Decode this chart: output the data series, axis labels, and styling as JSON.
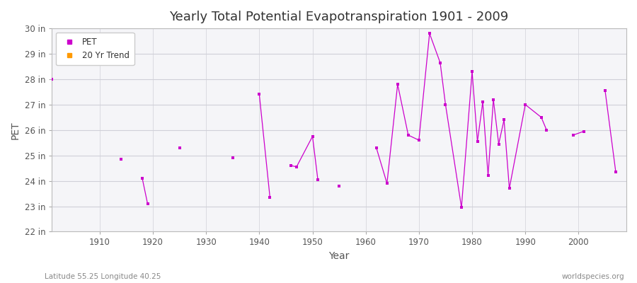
{
  "title": "Yearly Total Potential Evapotranspiration 1901 - 2009",
  "xlabel": "Year",
  "ylabel": "PET",
  "plot_bg_color": "#f5f5f8",
  "fig_bg_color": "#ffffff",
  "pet_color": "#cc00cc",
  "trend_color": "#ff9900",
  "ylim_bottom": 22,
  "ylim_top": 30,
  "ytick_labels": [
    "22 in",
    "23 in",
    "24 in",
    "25 in",
    "26 in",
    "27 in",
    "28 in",
    "29 in",
    "30 in"
  ],
  "ytick_values": [
    22,
    23,
    24,
    25,
    26,
    27,
    28,
    29,
    30
  ],
  "xlim_left": 1901,
  "xlim_right": 2009,
  "footer_left": "Latitude 55.25 Longitude 40.25",
  "footer_right": "worldspecies.org",
  "pet_data": [
    [
      1901,
      28.0
    ],
    [
      1914,
      24.85
    ],
    [
      1918,
      24.1
    ],
    [
      1919,
      23.1
    ],
    [
      1925,
      25.3
    ],
    [
      1935,
      24.9
    ],
    [
      1940,
      27.4
    ],
    [
      1942,
      23.35
    ],
    [
      1946,
      24.6
    ],
    [
      1947,
      24.55
    ],
    [
      1950,
      25.75
    ],
    [
      1951,
      24.05
    ],
    [
      1955,
      23.8
    ],
    [
      1962,
      25.3
    ],
    [
      1964,
      23.9
    ],
    [
      1966,
      27.8
    ],
    [
      1968,
      25.8
    ],
    [
      1970,
      25.6
    ],
    [
      1972,
      29.8
    ],
    [
      1974,
      28.65
    ],
    [
      1975,
      27.0
    ],
    [
      1978,
      22.95
    ],
    [
      1980,
      28.3
    ],
    [
      1981,
      25.55
    ],
    [
      1982,
      27.1
    ],
    [
      1983,
      24.2
    ],
    [
      1984,
      27.2
    ],
    [
      1985,
      25.45
    ],
    [
      1986,
      26.4
    ],
    [
      1987,
      23.7
    ],
    [
      1990,
      27.0
    ],
    [
      1993,
      26.5
    ],
    [
      1994,
      26.0
    ],
    [
      1999,
      25.8
    ],
    [
      2001,
      25.95
    ],
    [
      2005,
      27.55
    ],
    [
      2007,
      24.35
    ]
  ],
  "connected_pairs_threshold": 3,
  "xtick_positions": [
    1910,
    1920,
    1930,
    1940,
    1950,
    1960,
    1970,
    1980,
    1990,
    2000
  ]
}
